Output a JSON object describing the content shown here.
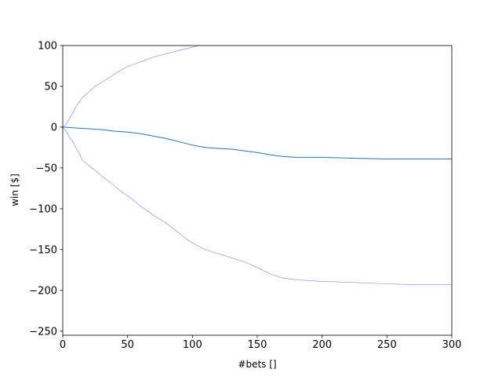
{
  "chart_data": {
    "type": "line",
    "title": "",
    "xlabel": "#bets []",
    "ylabel": "win [$]",
    "xlim": [
      0,
      300
    ],
    "ylim": [
      -255,
      100
    ],
    "xticks": [
      0,
      50,
      100,
      150,
      200,
      250,
      300
    ],
    "yticks": [
      100,
      50,
      0,
      -50,
      -100,
      -150,
      -200,
      -250
    ],
    "xtick_labels": [
      "0",
      "50",
      "100",
      "150",
      "200",
      "250",
      "300"
    ],
    "ytick_labels": [
      "100",
      "50",
      "0",
      "−50",
      "−100",
      "−150",
      "−200",
      "−250"
    ],
    "grid": false,
    "series": [
      {
        "color": "#7f7fff",
        "x": [
          0,
          3,
          5,
          8,
          10,
          13,
          15,
          18,
          20,
          25,
          30,
          35,
          40,
          45,
          50,
          55,
          60,
          65,
          70,
          75,
          80,
          85,
          90,
          95,
          100,
          105,
          110,
          120
        ],
        "y": [
          0,
          4,
          10,
          18,
          25,
          31,
          36,
          40,
          43,
          50,
          55,
          60,
          65,
          70,
          74,
          77,
          80,
          83,
          86,
          88,
          90,
          92,
          94,
          96,
          98,
          100,
          101,
          103
        ]
      },
      {
        "color": "#1f77b4",
        "x": [
          0,
          10,
          20,
          30,
          40,
          50,
          60,
          70,
          80,
          90,
          100,
          110,
          120,
          130,
          140,
          150,
          160,
          170,
          180,
          200,
          220,
          250,
          270,
          300
        ],
        "y": [
          0,
          -1,
          -2,
          -3,
          -5,
          -6,
          -8,
          -11,
          -14,
          -18,
          -22,
          -25,
          -26,
          -27,
          -29,
          -31,
          -34,
          -36,
          -37,
          -37,
          -38,
          -39,
          -39,
          -39
        ]
      },
      {
        "color": "#7f7fff",
        "x": [
          0,
          3,
          5,
          8,
          10,
          13,
          15,
          20,
          25,
          30,
          35,
          40,
          45,
          50,
          55,
          60,
          65,
          70,
          75,
          80,
          85,
          90,
          95,
          100,
          110,
          120,
          130,
          140,
          150,
          160,
          170,
          180,
          200,
          220,
          250,
          270,
          300
        ],
        "y": [
          0,
          -6,
          -12,
          -18,
          -25,
          -33,
          -40,
          -47,
          -53,
          -60,
          -66,
          -72,
          -79,
          -84,
          -90,
          -97,
          -102,
          -108,
          -113,
          -118,
          -124,
          -130,
          -137,
          -142,
          -150,
          -155,
          -160,
          -165,
          -172,
          -180,
          -185,
          -187,
          -189,
          -190,
          -192,
          -193,
          -193
        ]
      }
    ]
  }
}
